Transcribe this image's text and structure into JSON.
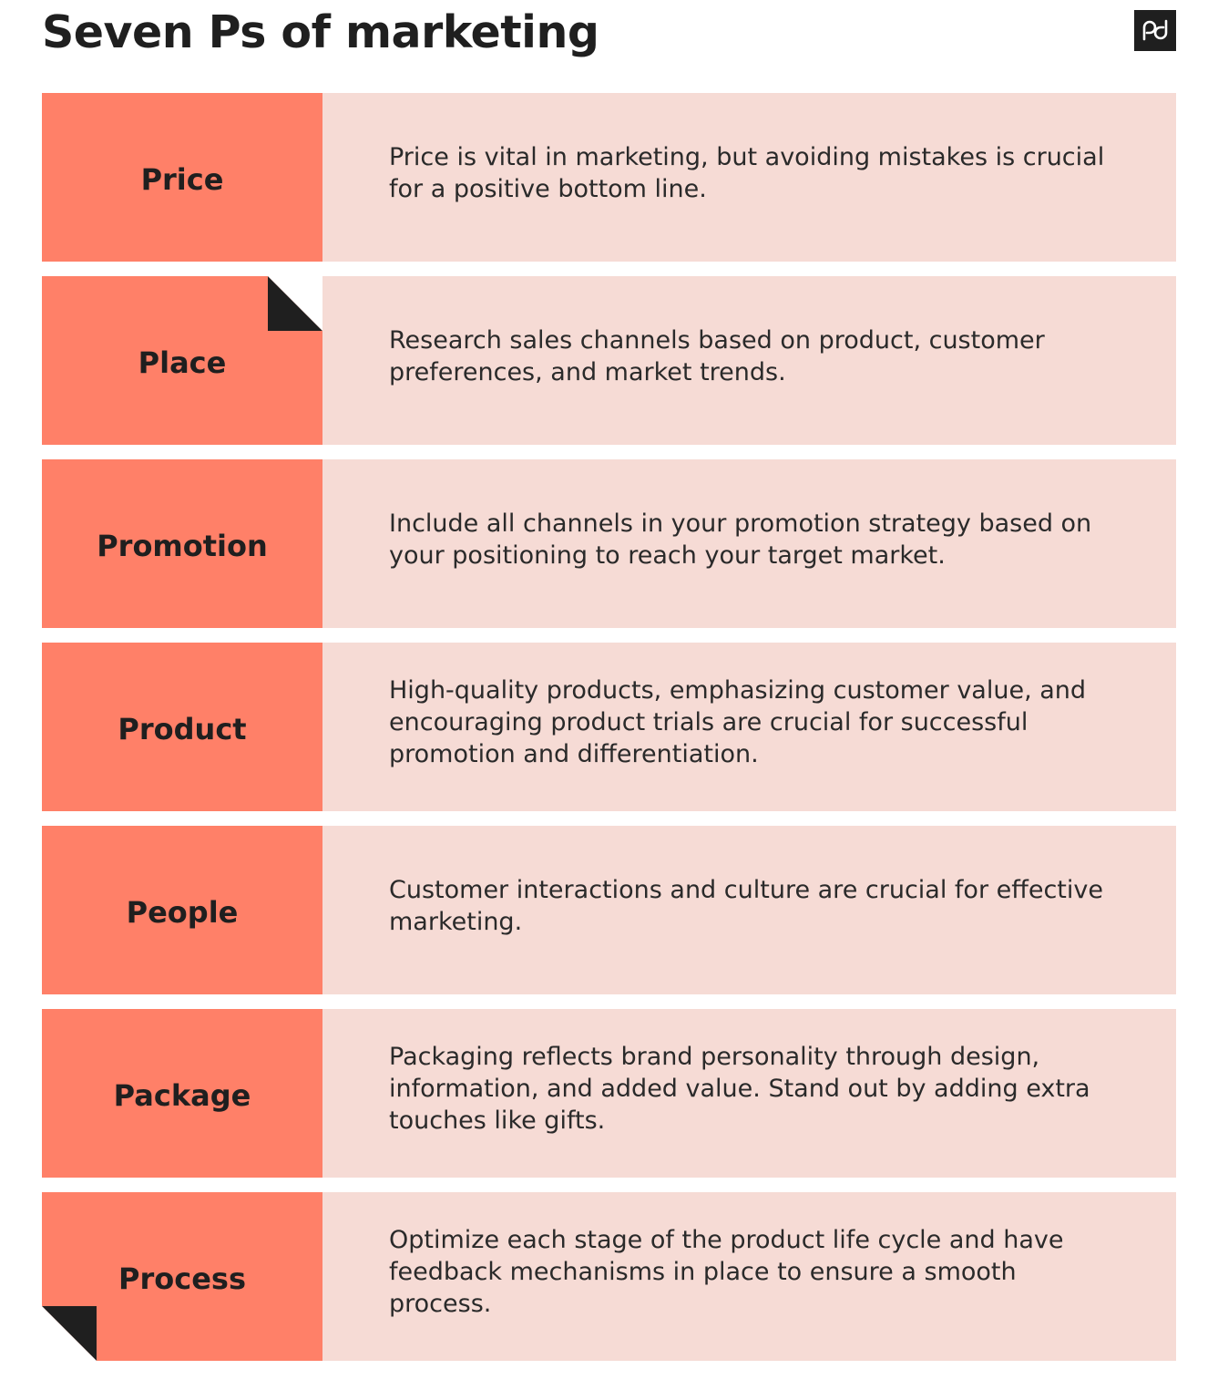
{
  "title": "Seven Ps of marketing",
  "logo": {
    "icon": "pd-logo-icon",
    "color": "#1f1f1f"
  },
  "colors": {
    "label_background": "#ff8068",
    "description_background": "#f6dbd5",
    "text": "#1f1f1f",
    "fold": "#1f1f1f"
  },
  "items": [
    {
      "label": "Price",
      "description": "Price is vital in marketing, but avoiding mistakes is crucial for a positive bottom line."
    },
    {
      "label": "Place",
      "description": "Research sales channels based on product, customer preferences, and market trends."
    },
    {
      "label": "Promotion",
      "description": "Include all channels in your promotion strategy based on your positioning to reach your target market."
    },
    {
      "label": "Product",
      "description": "High-quality products, emphasizing customer value, and encouraging product trials are crucial for successful promotion and differentiation."
    },
    {
      "label": "People",
      "description": "Customer interactions and culture are crucial for effective marketing."
    },
    {
      "label": "Package",
      "description": "Packaging reflects brand personality through design, information, and added value. Stand out by adding extra touches like gifts."
    },
    {
      "label": "Process",
      "description": "Optimize each stage of the product life cycle and have feedback mechanisms in place to ensure a smooth process."
    }
  ]
}
